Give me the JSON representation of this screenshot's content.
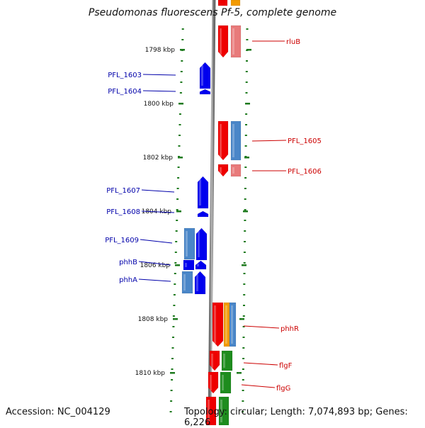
{
  "title": "Pseudomonas fluorescens Pf-5, complete genome",
  "footer": {
    "accession": "Accession: NC_004129",
    "topology": "Topology: circular; Length: 7,074,893 bp; Genes: 6,226"
  },
  "colors": {
    "backbone": "#888888",
    "forward_gene": "#0000ee",
    "forward_light": "#4a86c8",
    "reverse_gene": "#ee0000",
    "reverse_light": "#e87a7a",
    "orange": "#f29a00",
    "green": "#1e8c1e",
    "tick": "#1e7a1e",
    "left_label": "#0000aa",
    "right_label": "#cc0000"
  },
  "ticks": [
    {
      "label": "1798 kbp"
    },
    {
      "label": "1800 kbp"
    },
    {
      "label": "1802 kbp"
    },
    {
      "label": "1804 kbp"
    },
    {
      "label": "1806 kbp"
    },
    {
      "label": "1808 kbp"
    },
    {
      "label": "1810 kbp"
    }
  ],
  "left_genes": [
    {
      "name": "PFL_1603"
    },
    {
      "name": "PFL_1604"
    },
    {
      "name": "PFL_1607"
    },
    {
      "name": "PFL_1608"
    },
    {
      "name": "PFL_1609"
    },
    {
      "name": "phhB"
    },
    {
      "name": "phhA"
    }
  ],
  "right_genes": [
    {
      "name": "rluB"
    },
    {
      "name": "PFL_1605"
    },
    {
      "name": "PFL_1606"
    },
    {
      "name": "phhR"
    },
    {
      "name": "flgF"
    },
    {
      "name": "flgG"
    }
  ]
}
